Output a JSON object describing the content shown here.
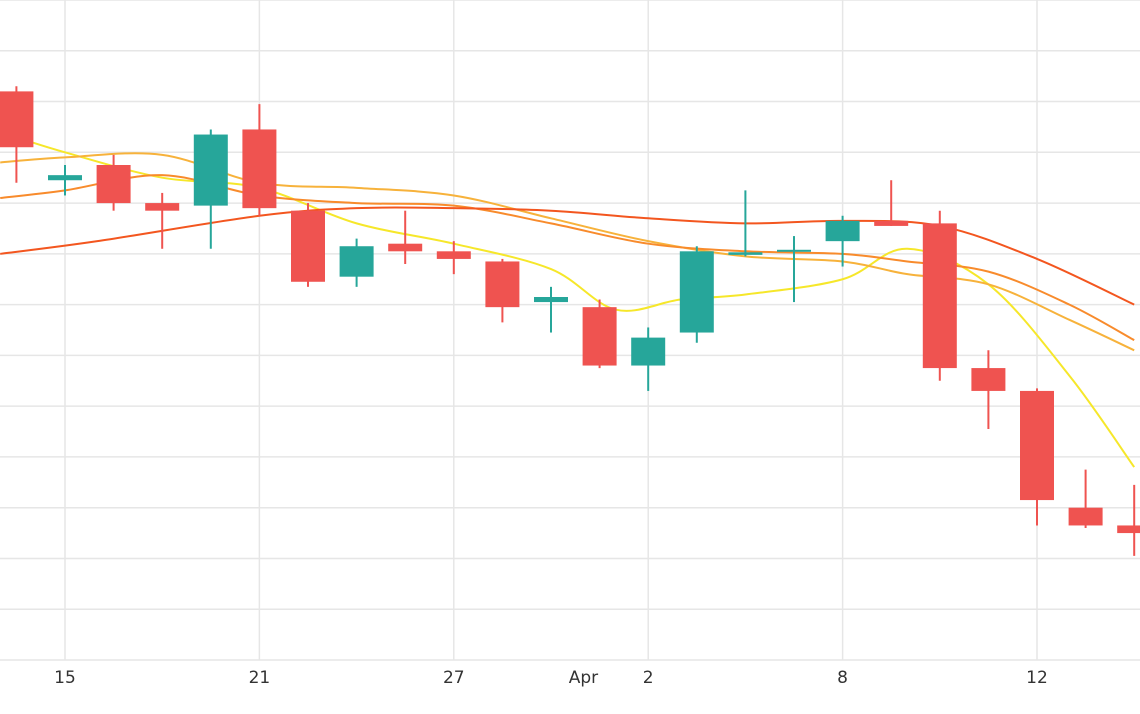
{
  "chart_data": {
    "type": "candlestick",
    "grid": true,
    "legend": "none",
    "x_tick_labels": [
      "15",
      "21",
      "27",
      "Apr",
      "2",
      "8",
      "12"
    ],
    "x_tick_days": [
      15,
      21,
      27,
      31,
      33,
      39,
      45
    ],
    "ylim": [
      0,
      13
    ],
    "colors": {
      "up": "#26a69a",
      "down": "#ef5350",
      "grid": "#e6e6e6",
      "ma_lines": [
        "#f6e72a",
        "#f7b23b",
        "#f88b2c",
        "#f3561f"
      ]
    },
    "candles": [
      {
        "day": 13.5,
        "open": 11.2,
        "high": 11.3,
        "low": 9.4,
        "close": 10.1
      },
      {
        "day": 15.0,
        "open": 9.45,
        "high": 9.75,
        "low": 9.15,
        "close": 9.55
      },
      {
        "day": 16.5,
        "open": 9.75,
        "high": 9.95,
        "low": 8.85,
        "close": 9.0
      },
      {
        "day": 18.0,
        "open": 9.0,
        "high": 9.2,
        "low": 8.1,
        "close": 8.85
      },
      {
        "day": 19.5,
        "open": 8.95,
        "high": 10.45,
        "low": 8.1,
        "close": 10.35
      },
      {
        "day": 21.0,
        "open": 10.45,
        "high": 10.95,
        "low": 8.75,
        "close": 8.9
      },
      {
        "day": 22.5,
        "open": 8.85,
        "high": 9.0,
        "low": 7.35,
        "close": 7.45
      },
      {
        "day": 24.0,
        "open": 7.55,
        "high": 8.3,
        "low": 7.35,
        "close": 8.15
      },
      {
        "day": 25.5,
        "open": 8.2,
        "high": 8.85,
        "low": 7.8,
        "close": 8.05
      },
      {
        "day": 27.0,
        "open": 8.05,
        "high": 8.25,
        "low": 7.6,
        "close": 7.9
      },
      {
        "day": 28.5,
        "open": 7.85,
        "high": 7.9,
        "low": 6.65,
        "close": 6.95
      },
      {
        "day": 30.0,
        "open": 7.05,
        "high": 7.35,
        "low": 6.45,
        "close": 7.15
      },
      {
        "day": 31.5,
        "open": 6.95,
        "high": 7.1,
        "low": 5.75,
        "close": 5.8
      },
      {
        "day": 33.0,
        "open": 5.8,
        "high": 6.55,
        "low": 5.3,
        "close": 6.35
      },
      {
        "day": 34.5,
        "open": 6.45,
        "high": 8.15,
        "low": 6.25,
        "close": 8.05
      },
      {
        "day": 36.0,
        "open": 7.98,
        "high": 9.25,
        "low": 7.95,
        "close": 8.03
      },
      {
        "day": 37.5,
        "open": 8.08,
        "high": 8.35,
        "low": 7.05,
        "close": 8.08
      },
      {
        "day": 39.0,
        "open": 8.25,
        "high": 8.75,
        "low": 7.75,
        "close": 8.65
      },
      {
        "day": 40.5,
        "open": 8.65,
        "high": 9.45,
        "low": 8.55,
        "close": 8.55
      },
      {
        "day": 42.0,
        "open": 8.6,
        "high": 8.85,
        "low": 5.5,
        "close": 5.75
      },
      {
        "day": 43.5,
        "open": 5.75,
        "high": 6.1,
        "low": 4.55,
        "close": 5.3
      },
      {
        "day": 45.0,
        "open": 5.3,
        "high": 5.35,
        "low": 2.65,
        "close": 3.15
      },
      {
        "day": 46.5,
        "open": 3.0,
        "high": 3.75,
        "low": 2.6,
        "close": 2.65
      },
      {
        "day": 48.0,
        "open": 2.65,
        "high": 3.45,
        "low": 2.05,
        "close": 2.5
      }
    ],
    "moving_averages": [
      {
        "color": "#f6e72a",
        "points": [
          [
            13.0,
            10.4
          ],
          [
            15.0,
            10.0
          ],
          [
            18.0,
            9.5
          ],
          [
            21.0,
            9.3
          ],
          [
            24.0,
            8.6
          ],
          [
            27.0,
            8.2
          ],
          [
            30.0,
            7.7
          ],
          [
            32.0,
            6.9
          ],
          [
            34.0,
            7.1
          ],
          [
            36.0,
            7.2
          ],
          [
            39.0,
            7.5
          ],
          [
            41.0,
            8.1
          ],
          [
            43.5,
            7.4
          ],
          [
            46.0,
            5.6
          ],
          [
            48.0,
            3.8
          ]
        ]
      },
      {
        "color": "#f7b23b",
        "points": [
          [
            13.0,
            9.8
          ],
          [
            15.0,
            9.9
          ],
          [
            18.0,
            9.95
          ],
          [
            21.0,
            9.4
          ],
          [
            24.0,
            9.3
          ],
          [
            27.0,
            9.15
          ],
          [
            30.0,
            8.7
          ],
          [
            33.0,
            8.25
          ],
          [
            36.0,
            7.95
          ],
          [
            39.0,
            7.85
          ],
          [
            41.0,
            7.6
          ],
          [
            43.5,
            7.4
          ],
          [
            46.0,
            6.7
          ],
          [
            48.0,
            6.1
          ]
        ]
      },
      {
        "color": "#f88b2c",
        "points": [
          [
            13.0,
            9.1
          ],
          [
            15.0,
            9.25
          ],
          [
            18.0,
            9.55
          ],
          [
            21.0,
            9.15
          ],
          [
            24.0,
            9.0
          ],
          [
            27.0,
            8.95
          ],
          [
            30.0,
            8.6
          ],
          [
            33.0,
            8.2
          ],
          [
            36.0,
            8.05
          ],
          [
            39.0,
            8.0
          ],
          [
            41.0,
            7.85
          ],
          [
            43.5,
            7.65
          ],
          [
            46.0,
            7.0
          ],
          [
            48.0,
            6.3
          ]
        ]
      },
      {
        "color": "#f3561f",
        "points": [
          [
            13.0,
            8.0
          ],
          [
            16.0,
            8.25
          ],
          [
            21.0,
            8.75
          ],
          [
            24.0,
            8.9
          ],
          [
            27.0,
            8.9
          ],
          [
            30.0,
            8.85
          ],
          [
            33.0,
            8.7
          ],
          [
            36.0,
            8.6
          ],
          [
            39.0,
            8.65
          ],
          [
            42.0,
            8.55
          ],
          [
            45.0,
            7.9
          ],
          [
            48.0,
            7.0
          ]
        ]
      }
    ]
  }
}
